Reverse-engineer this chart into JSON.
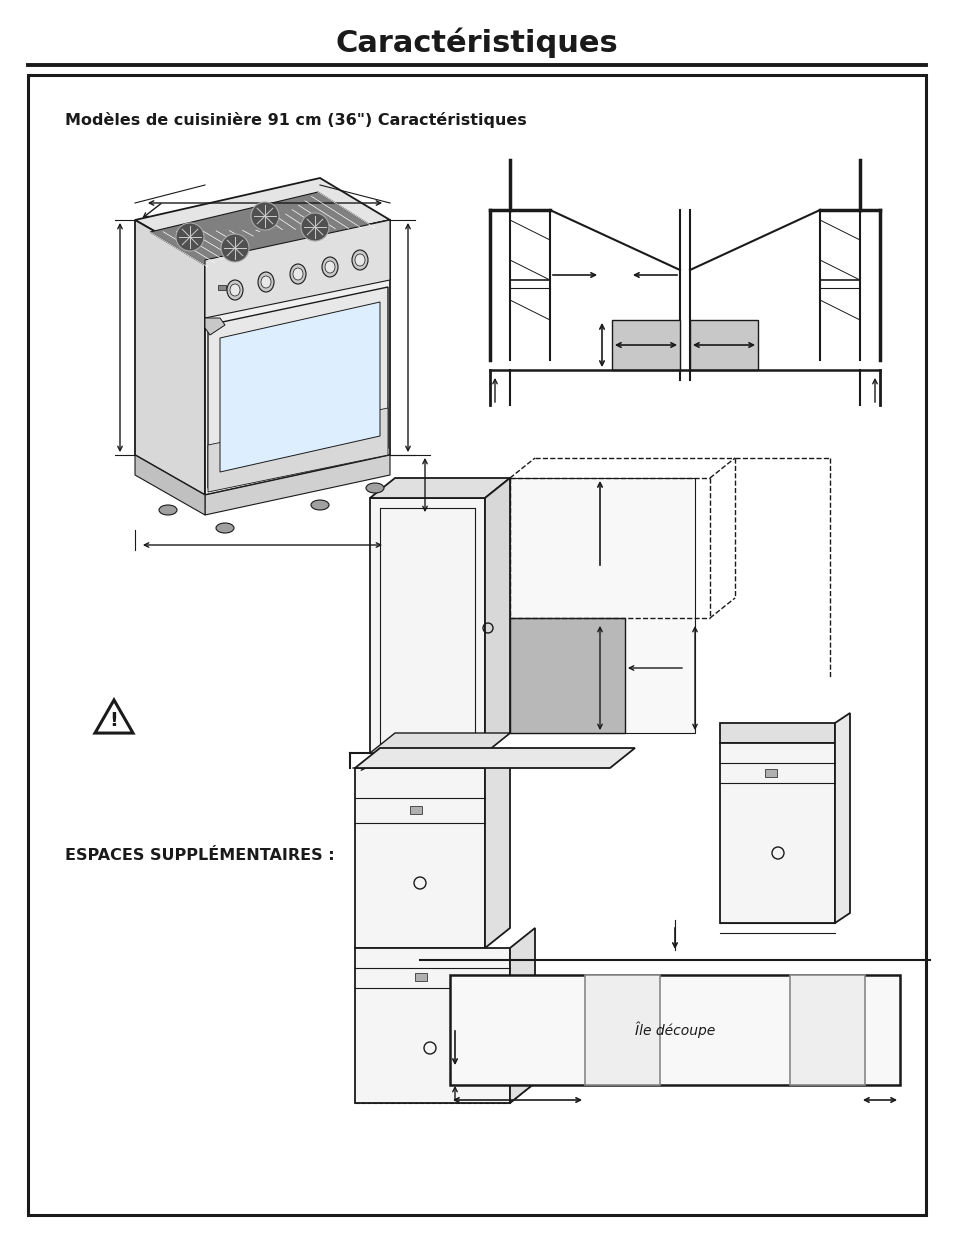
{
  "title": "Caractéristiques",
  "subtitle": "Modèles de cuisinière 91 cm (36\") Caractéristiques",
  "espaces_label": "ESPACES SUPPLÉMENTAIRES :",
  "ile_decoupe_label": "Île découpe",
  "bg_color": "#ffffff",
  "line_color": "#1a1a1a",
  "gray_fill": "#c8c8c8",
  "light_gray": "#e8e8e8",
  "mid_gray": "#d0d0d0",
  "title_fontsize": 22,
  "subtitle_fontsize": 11.5,
  "body_fontsize": 10
}
